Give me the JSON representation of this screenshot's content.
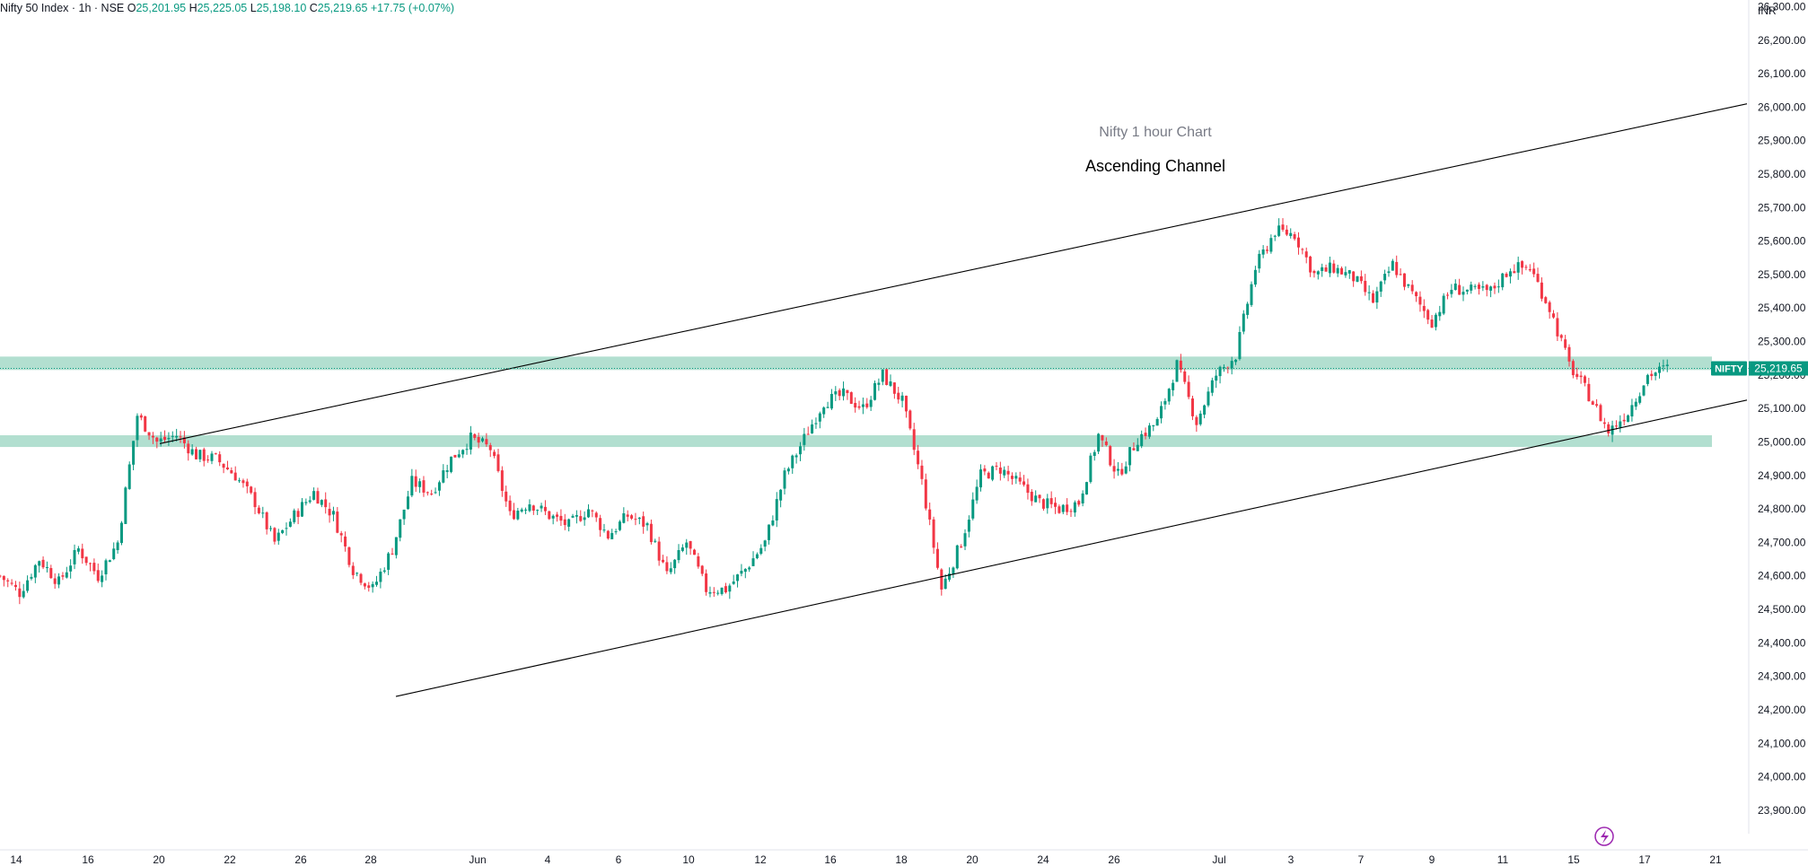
{
  "header": {
    "symbol": "Nifty 50 Index · 1h · NSE",
    "open_label": "O",
    "open": "25,201.95",
    "high_label": "H",
    "high": "25,225.05",
    "low_label": "L",
    "low": "25,198.10",
    "close_label": "C",
    "close": "25,219.65",
    "change": "+17.75 (+0.07%)",
    "currency": "INR"
  },
  "chart_data": {
    "type": "candlestick",
    "annotations": [
      {
        "text": "Nifty 1 hour Chart",
        "color": "#787b86"
      },
      {
        "text": "Ascending Channel",
        "color": "#000000"
      }
    ],
    "price_tag": {
      "symbol": "NIFTY",
      "value": "25,219.65"
    },
    "y_axis": {
      "ylim": [
        23830,
        26320
      ],
      "ticks": [
        "26,300.00",
        "26,200.00",
        "26,100.00",
        "26,000.00",
        "25,900.00",
        "25,800.00",
        "25,700.00",
        "25,600.00",
        "25,500.00",
        "25,400.00",
        "25,300.00",
        "25,200.00",
        "25,100.00",
        "25,000.00",
        "24,900.00",
        "24,800.00",
        "24,700.00",
        "24,600.00",
        "24,500.00",
        "24,400.00",
        "24,300.00",
        "24,200.00",
        "24,100.00",
        "24,000.00",
        "23,900.00"
      ],
      "tick_values": [
        26300,
        26200,
        26100,
        26000,
        25900,
        25800,
        25700,
        25600,
        25500,
        25400,
        25300,
        25200,
        25100,
        25000,
        24900,
        24800,
        24700,
        24600,
        24500,
        24400,
        24300,
        24200,
        24100,
        24000,
        23900
      ]
    },
    "x_axis": {
      "ticks": [
        "14",
        "16",
        "20",
        "22",
        "26",
        "28",
        "Jun",
        "4",
        "6",
        "10",
        "12",
        "16",
        "18",
        "20",
        "24",
        "26",
        "Jul",
        "3",
        "7",
        "9",
        "11",
        "15",
        "17",
        "21"
      ]
    },
    "zones": [
      {
        "from": 25215,
        "to": 25255,
        "color": "#b2dfd0"
      },
      {
        "from": 24985,
        "to": 25020,
        "color": "#b2dfd0"
      }
    ],
    "trendlines": [
      {
        "name": "channel-upper",
        "x": [
          "May 20",
          "Jul 21"
        ],
        "y": [
          24995,
          26010
        ]
      },
      {
        "name": "channel-lower",
        "x": [
          "May 29",
          "Jul 21"
        ],
        "y": [
          24240,
          25125
        ]
      }
    ],
    "last_close": 25219.65,
    "up_color": "#089981",
    "down_color": "#f23645",
    "close_path": [
      [
        0,
        24600
      ],
      [
        5,
        24550
      ],
      [
        10,
        24650
      ],
      [
        15,
        24580
      ],
      [
        20,
        24680
      ],
      [
        25,
        24600
      ],
      [
        30,
        24700
      ],
      [
        35,
        25080
      ],
      [
        40,
        25000
      ],
      [
        45,
        25020
      ],
      [
        50,
        24960
      ],
      [
        55,
        24950
      ],
      [
        60,
        24900
      ],
      [
        65,
        24820
      ],
      [
        70,
        24700
      ],
      [
        75,
        24780
      ],
      [
        80,
        24850
      ],
      [
        85,
        24780
      ],
      [
        90,
        24620
      ],
      [
        95,
        24560
      ],
      [
        100,
        24680
      ],
      [
        105,
        24880
      ],
      [
        110,
        24850
      ],
      [
        115,
        24950
      ],
      [
        120,
        25010
      ],
      [
        125,
        24980
      ],
      [
        130,
        24780
      ],
      [
        135,
        24820
      ],
      [
        140,
        24780
      ],
      [
        145,
        24750
      ],
      [
        150,
        24800
      ],
      [
        155,
        24720
      ],
      [
        160,
        24780
      ],
      [
        165,
        24750
      ],
      [
        170,
        24600
      ],
      [
        175,
        24700
      ],
      [
        180,
        24560
      ],
      [
        185,
        24560
      ],
      [
        190,
        24620
      ],
      [
        195,
        24700
      ],
      [
        200,
        24900
      ],
      [
        205,
        25010
      ],
      [
        210,
        25120
      ],
      [
        215,
        25140
      ],
      [
        220,
        25100
      ],
      [
        225,
        25200
      ],
      [
        230,
        25120
      ],
      [
        235,
        24880
      ],
      [
        240,
        24560
      ],
      [
        245,
        24700
      ],
      [
        250,
        24900
      ],
      [
        255,
        24920
      ],
      [
        260,
        24870
      ],
      [
        265,
        24820
      ],
      [
        270,
        24800
      ],
      [
        275,
        24820
      ],
      [
        280,
        25020
      ],
      [
        285,
        24900
      ],
      [
        290,
        25010
      ],
      [
        295,
        25060
      ],
      [
        300,
        25230
      ],
      [
        305,
        25060
      ],
      [
        310,
        25200
      ],
      [
        315,
        25260
      ],
      [
        320,
        25520
      ],
      [
        325,
        25630
      ],
      [
        330,
        25620
      ],
      [
        335,
        25500
      ],
      [
        340,
        25520
      ],
      [
        345,
        25490
      ],
      [
        350,
        25420
      ],
      [
        355,
        25530
      ],
      [
        360,
        25440
      ],
      [
        365,
        25360
      ],
      [
        370,
        25460
      ],
      [
        375,
        25450
      ],
      [
        380,
        25450
      ],
      [
        385,
        25520
      ],
      [
        390,
        25520
      ],
      [
        395,
        25400
      ],
      [
        400,
        25230
      ],
      [
        405,
        25140
      ],
      [
        410,
        25030
      ],
      [
        415,
        25090
      ],
      [
        420,
        25200
      ],
      [
        425,
        25220
      ]
    ]
  }
}
